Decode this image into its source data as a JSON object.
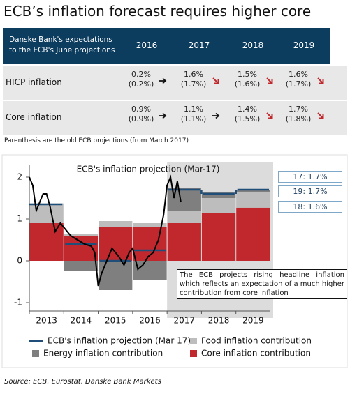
{
  "title": "ECB’s inflation forecast requires higher core",
  "table": {
    "header": {
      "title": "Danske Bank's expectations to the ECB's June projections",
      "years": [
        "2016",
        "2017",
        "2018",
        "2019"
      ]
    },
    "rows": [
      {
        "label": "HICP inflation",
        "cells": [
          {
            "current": "0.2%",
            "previous": "(0.2%)"
          },
          {
            "current": "1.6%",
            "previous": "(1.7%)"
          },
          {
            "current": "1.5%",
            "previous": "(1.6%)"
          },
          {
            "current": "1.6%",
            "previous": "(1.7%)"
          }
        ]
      },
      {
        "label": "Core inflation",
        "cells": [
          {
            "current": "0.9%",
            "previous": "(0.9%)"
          },
          {
            "current": "1.1%",
            "previous": "(1.1%)"
          },
          {
            "current": "1.4%",
            "previous": "(1.5%)"
          },
          {
            "current": "1.7%",
            "previous": "(1.8%)"
          }
        ]
      }
    ]
  },
  "note": "Parenthesis are the old ECB projections (from March 2017)",
  "chart_data": {
    "type": "stacked-bar",
    "title": "ECB's inflation projection (Mar-17)",
    "categories": [
      "2013",
      "2014",
      "2015",
      "2016",
      "2017",
      "2018",
      "2019"
    ],
    "xlim": [
      2013,
      2020
    ],
    "ylim": [
      -1.2,
      2.3
    ],
    "yticks": [
      -1,
      0,
      1,
      2
    ],
    "shaded_region": [
      2017,
      2020
    ],
    "series": [
      {
        "name": "ECB's inflation projection (Mar 17)",
        "color": "#1f4e79",
        "type": "step",
        "values": [
          1.35,
          0.4,
          0.0,
          0.25,
          1.7,
          1.6,
          1.7
        ]
      },
      {
        "name": "Food inflation contribution",
        "color": "#bdbdbd",
        "type": "bar",
        "values": [
          0.45,
          0.05,
          0.15,
          0.1,
          0.3,
          0.35,
          0.38
        ]
      },
      {
        "name": "Energy inflation contribution",
        "color": "#7f7f7f",
        "type": "bar",
        "values": [
          0.02,
          -0.25,
          -0.7,
          -0.45,
          0.55,
          0.15,
          0.05
        ]
      },
      {
        "name": "Core inflation contribution",
        "color": "#c0282d",
        "type": "bar",
        "values": [
          0.9,
          0.6,
          0.8,
          0.8,
          0.9,
          1.15,
          1.27
        ]
      }
    ],
    "stack_order": [
      3,
      1,
      2
    ],
    "line": {
      "color": "#000000",
      "x": [
        2013.0,
        2013.1,
        2013.2,
        2013.3,
        2013.4,
        2013.5,
        2013.6,
        2013.75,
        2013.9,
        2014.0,
        2014.2,
        2014.4,
        2014.6,
        2014.8,
        2014.9,
        2015.0,
        2015.1,
        2015.25,
        2015.4,
        2015.5,
        2015.6,
        2015.75,
        2015.9,
        2016.0,
        2016.15,
        2016.3,
        2016.45,
        2016.6,
        2016.75,
        2016.9,
        2017.0,
        2017.1,
        2017.2,
        2017.3,
        2017.4
      ],
      "values": [
        2.0,
        1.8,
        1.2,
        1.4,
        1.6,
        1.6,
        1.3,
        0.7,
        0.9,
        0.8,
        0.6,
        0.5,
        0.4,
        0.35,
        0.2,
        -0.6,
        -0.3,
        0.0,
        0.3,
        0.2,
        0.1,
        -0.1,
        0.2,
        0.3,
        -0.2,
        -0.1,
        0.1,
        0.2,
        0.5,
        1.1,
        1.8,
        2.0,
        1.5,
        1.9,
        1.4
      ]
    },
    "callouts": [
      "17: 1.7%",
      "19: 1.7%",
      "18: 1.6%"
    ],
    "annotation": "The ECB projects rising headline inflation which reflects an expectation of a much higher contribution from core inflation"
  },
  "source": "Source: ECB, Eurostat, Danske Bank Markets"
}
